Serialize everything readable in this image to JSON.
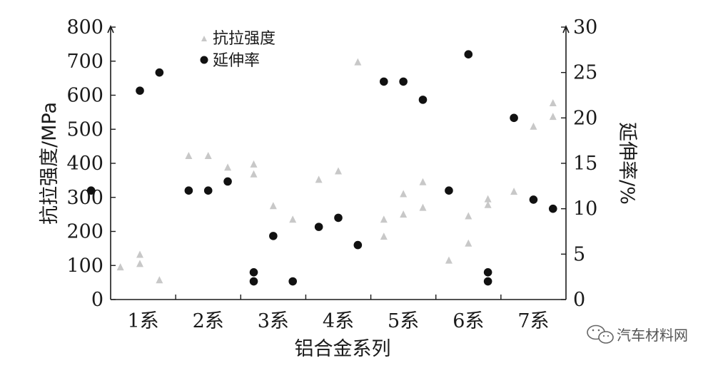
{
  "chart_data": {
    "type": "scatter",
    "xlabel": "铝合金系列",
    "ylabel_left": "抗拉强度/MPa",
    "ylabel_right": "延伸率/%",
    "categories": [
      "1系",
      "2系",
      "3系",
      "4系",
      "5系",
      "6系",
      "7系"
    ],
    "ylim_left": [
      0,
      800
    ],
    "ylim_right": [
      0,
      30
    ],
    "yticks_left": [
      "0",
      "100",
      "200",
      "300",
      "400",
      "500",
      "600",
      "700",
      "800"
    ],
    "yticks_right": [
      "0",
      "5",
      "10",
      "15",
      "20",
      "25",
      "30"
    ],
    "legend_position": "top-left",
    "series": [
      {
        "name": "抗拉强度",
        "axis": "left",
        "marker": "triangle",
        "color": "#c8c8c8",
        "points": [
          {
            "category": "1系",
            "offset": -0.35,
            "y": 95
          },
          {
            "category": "1系",
            "offset": -0.05,
            "y": 105
          },
          {
            "category": "1系",
            "offset": -0.05,
            "y": 132
          },
          {
            "category": "1系",
            "offset": 0.25,
            "y": 57
          },
          {
            "category": "2系",
            "offset": -0.3,
            "y": 422
          },
          {
            "category": "2系",
            "offset": 0.0,
            "y": 422
          },
          {
            "category": "2系",
            "offset": 0.3,
            "y": 388
          },
          {
            "category": "3系",
            "offset": -0.3,
            "y": 397
          },
          {
            "category": "3系",
            "offset": -0.3,
            "y": 368
          },
          {
            "category": "3系",
            "offset": 0.0,
            "y": 275
          },
          {
            "category": "3系",
            "offset": 0.3,
            "y": 235
          },
          {
            "category": "4系",
            "offset": -0.3,
            "y": 352
          },
          {
            "category": "4系",
            "offset": 0.0,
            "y": 377
          },
          {
            "category": "4系",
            "offset": 0.3,
            "y": 697
          },
          {
            "category": "5系",
            "offset": -0.3,
            "y": 185
          },
          {
            "category": "5系",
            "offset": -0.3,
            "y": 235
          },
          {
            "category": "5系",
            "offset": 0.0,
            "y": 250
          },
          {
            "category": "5系",
            "offset": 0.0,
            "y": 310
          },
          {
            "category": "5系",
            "offset": 0.3,
            "y": 270
          },
          {
            "category": "5系",
            "offset": 0.3,
            "y": 345
          },
          {
            "category": "6系",
            "offset": -0.3,
            "y": 115
          },
          {
            "category": "6系",
            "offset": 0.0,
            "y": 165
          },
          {
            "category": "6系",
            "offset": 0.0,
            "y": 245
          },
          {
            "category": "6系",
            "offset": 0.3,
            "y": 278
          },
          {
            "category": "6系",
            "offset": 0.3,
            "y": 295
          },
          {
            "category": "7系",
            "offset": -0.3,
            "y": 317
          },
          {
            "category": "7系",
            "offset": 0.0,
            "y": 508
          },
          {
            "category": "7系",
            "offset": 0.3,
            "y": 537
          },
          {
            "category": "7系",
            "offset": 0.3,
            "y": 577
          }
        ]
      },
      {
        "name": "延伸率",
        "axis": "right",
        "marker": "circle",
        "color": "#111111",
        "points": [
          {
            "category": "1系",
            "offset": -0.8,
            "y": 12
          },
          {
            "category": "1系",
            "offset": -0.05,
            "y": 23
          },
          {
            "category": "1系",
            "offset": 0.25,
            "y": 25
          },
          {
            "category": "2系",
            "offset": -0.3,
            "y": 12
          },
          {
            "category": "2系",
            "offset": 0.0,
            "y": 12
          },
          {
            "category": "2系",
            "offset": 0.3,
            "y": 13
          },
          {
            "category": "3系",
            "offset": -0.3,
            "y": 3
          },
          {
            "category": "3系",
            "offset": -0.3,
            "y": 2
          },
          {
            "category": "3系",
            "offset": 0.0,
            "y": 7
          },
          {
            "category": "3系",
            "offset": 0.3,
            "y": 2
          },
          {
            "category": "4系",
            "offset": -0.3,
            "y": 8
          },
          {
            "category": "4系",
            "offset": 0.0,
            "y": 9
          },
          {
            "category": "4系",
            "offset": 0.3,
            "y": 6
          },
          {
            "category": "5系",
            "offset": -0.3,
            "y": 24
          },
          {
            "category": "5系",
            "offset": 0.0,
            "y": 24
          },
          {
            "category": "5系",
            "offset": 0.3,
            "y": 22
          },
          {
            "category": "6系",
            "offset": -0.3,
            "y": 12
          },
          {
            "category": "6系",
            "offset": 0.0,
            "y": 27
          },
          {
            "category": "6系",
            "offset": 0.3,
            "y": 3
          },
          {
            "category": "6系",
            "offset": 0.3,
            "y": 2
          },
          {
            "category": "7系",
            "offset": -0.3,
            "y": 20
          },
          {
            "category": "7系",
            "offset": 0.0,
            "y": 11
          },
          {
            "category": "7系",
            "offset": 0.3,
            "y": 10
          }
        ]
      }
    ]
  },
  "watermark": {
    "text": "汽车材料网",
    "icon": "wechat-icon"
  }
}
